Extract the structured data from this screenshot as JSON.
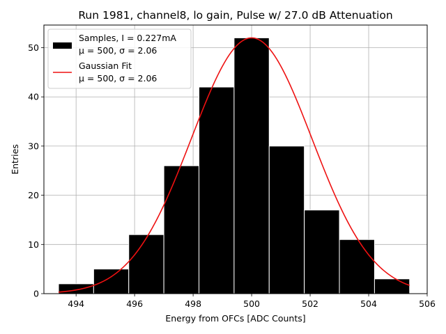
{
  "chart_data": {
    "type": "bar",
    "title": "Run 1981, channel8, lo gain, Pulse w/ 27.0 dB Attenuation",
    "xlabel": "Energy from OFCs [ADC Counts]",
    "ylabel": "Entries",
    "xlim": [
      492.9,
      506.0
    ],
    "ylim": [
      0,
      54.6
    ],
    "xticks": [
      494,
      496,
      498,
      500,
      502,
      504,
      506
    ],
    "yticks": [
      0,
      10,
      20,
      30,
      40,
      50
    ],
    "grid": true,
    "legend_position": "top-left",
    "histogram": {
      "name": "Samples, I = 0.227mA",
      "stats": "μ = 500, σ = 2.06",
      "color": "#000000",
      "edge_color": "#ffffff",
      "bins": [
        {
          "left": 493.4,
          "right": 494.6,
          "count": 2
        },
        {
          "left": 494.6,
          "right": 495.8,
          "count": 5
        },
        {
          "left": 495.8,
          "right": 497.0,
          "count": 12
        },
        {
          "left": 497.0,
          "right": 498.2,
          "count": 26
        },
        {
          "left": 498.2,
          "right": 499.4,
          "count": 42
        },
        {
          "left": 499.4,
          "right": 500.6,
          "count": 52
        },
        {
          "left": 500.6,
          "right": 501.8,
          "count": 30
        },
        {
          "left": 501.8,
          "right": 503.0,
          "count": 17
        },
        {
          "left": 503.0,
          "right": 504.2,
          "count": 11
        },
        {
          "left": 504.2,
          "right": 505.4,
          "count": 3
        }
      ]
    },
    "fit": {
      "name": "Gaussian Fit",
      "stats": "μ = 500, σ = 2.06",
      "color": "#ee1111",
      "mu": 500.0,
      "sigma": 2.06,
      "amplitude": 52.0,
      "x_range": [
        493.4,
        505.4
      ]
    }
  }
}
